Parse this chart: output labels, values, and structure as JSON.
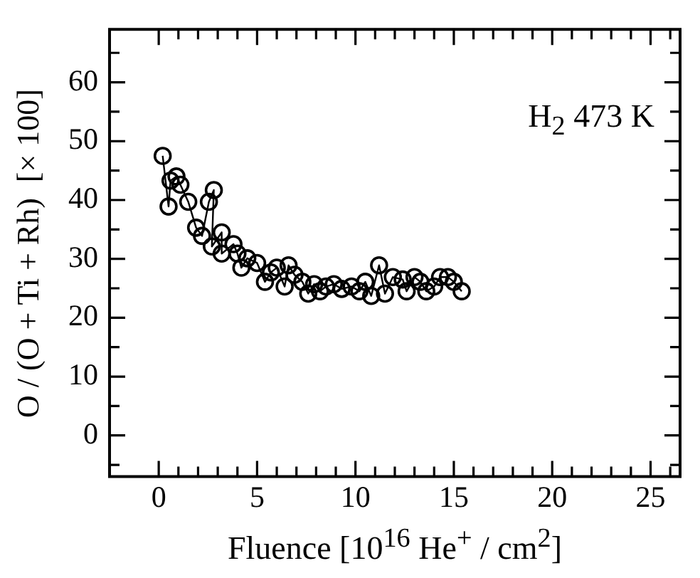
{
  "chart_data": {
    "type": "line",
    "xlabel": "Fluence [10$^{16}$ He$^{+}$ / cm$^{2}$]",
    "ylabel": "O / (O + Ti + Rh)  [× 100]",
    "annotations": [
      "H$_{2}$ 473 K"
    ],
    "x": [
      0.2,
      0.5,
      0.6,
      0.9,
      1.1,
      1.5,
      1.9,
      2.2,
      2.55,
      2.8,
      2.7,
      3.2,
      3.2,
      3.8,
      4.0,
      4.2,
      4.5,
      5.0,
      5.4,
      5.7,
      6.0,
      6.4,
      6.6,
      6.9,
      7.3,
      7.6,
      7.9,
      8.2,
      8.5,
      8.9,
      9.3,
      9.8,
      10.2,
      10.5,
      10.8,
      11.2,
      11.5,
      11.9,
      12.4,
      12.6,
      13.0,
      13.3,
      13.6,
      14.0,
      14.3,
      14.7,
      15.0,
      15.4
    ],
    "series": [
      {
        "color": "#000000",
        "values": [
          47.5,
          38.9,
          43.3,
          44,
          42.6,
          39.7,
          35.3,
          33.9,
          39.7,
          41.7,
          32.1,
          34.5,
          30.9,
          32.5,
          30.9,
          28.5,
          30.1,
          29.3,
          26.1,
          27.7,
          28.5,
          25.3,
          28.9,
          27.3,
          26.1,
          24.1,
          25.7,
          24.5,
          25.3,
          25.7,
          24.9,
          25.3,
          24.5,
          26.1,
          23.7,
          28.9,
          24.1,
          26.9,
          26.5,
          24.5,
          26.9,
          26.1,
          24.5,
          25.3,
          26.9,
          26.9,
          26.1,
          24.5
        ]
      }
    ],
    "marker": "circle",
    "line_style": "solid",
    "grid": false,
    "legend": false,
    "xlim": [
      -2.5,
      26.5
    ],
    "ylim": [
      -7,
      69
    ],
    "xticks": [
      0,
      {
        "value": 1,
        "label": null
      },
      {
        "value": 2,
        "label": null
      },
      {
        "value": 3,
        "label": null
      },
      {
        "value": 4,
        "label": null
      },
      5,
      {
        "value": 6,
        "label": null
      },
      {
        "value": 7,
        "label": null
      },
      {
        "value": 8,
        "label": null
      },
      {
        "value": 9,
        "label": null
      },
      10,
      {
        "value": 11,
        "label": null
      },
      {
        "value": 12,
        "label": null
      },
      {
        "value": 13,
        "label": null
      },
      {
        "value": 14,
        "label": null
      },
      15,
      {
        "value": 16,
        "label": null
      },
      {
        "value": 17,
        "label": null
      },
      {
        "value": 18,
        "label": null
      },
      {
        "value": 19,
        "label": null
      },
      20,
      {
        "value": 21,
        "label": null
      },
      {
        "value": 22,
        "label": null
      },
      {
        "value": 23,
        "label": null
      },
      {
        "value": 24,
        "label": null
      },
      25,
      {
        "value": 26,
        "label": null
      }
    ],
    "yticks": [
      {
        "value": -5,
        "label": null
      },
      0,
      {
        "value": 5,
        "label": null
      },
      10,
      {
        "value": 15,
        "label": null
      },
      20,
      {
        "value": 25,
        "label": null
      },
      30,
      {
        "value": 35,
        "label": null
      },
      40,
      {
        "value": 45,
        "label": null
      },
      50,
      {
        "value": 55,
        "label": null
      },
      60,
      {
        "value": 65,
        "label": null
      }
    ]
  }
}
